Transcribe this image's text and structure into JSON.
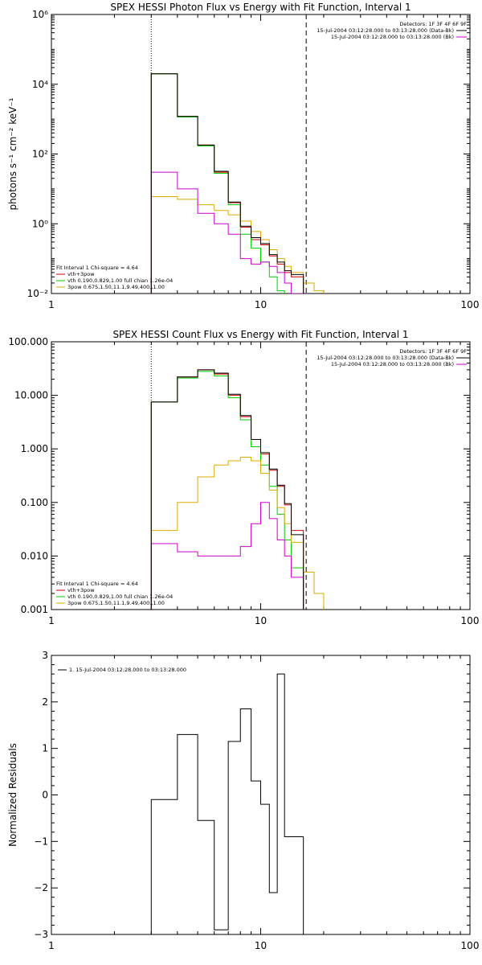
{
  "colors": {
    "background": "#ffffff",
    "axis": "#000000",
    "total_model": "#cc0000",
    "thermal": "#00cc00",
    "power_law": "#ddaa00",
    "background_spectrum": "#cc00cc",
    "data": "#000000"
  },
  "chart_data": [
    {
      "type": "line",
      "title": "SPEX HESSI Photon Flux vs Energy with Fit Function, Interval 1",
      "ylabel": "photons s⁻¹ cm⁻² keV⁻¹",
      "xlabel": "",
      "xscale": "log",
      "yscale": "log",
      "xlim": [
        1,
        100
      ],
      "ylim": [
        0.01,
        1000000
      ],
      "x_ticks": [
        1,
        10,
        100
      ],
      "x_tick_labels": [
        "1",
        "10",
        "100"
      ],
      "y_ticks": [
        0.01,
        1,
        100,
        10000,
        1000000
      ],
      "y_tick_labels": [
        "10⁻²",
        "10⁰",
        "10²",
        "10⁴",
        "10⁶"
      ],
      "vlines": [
        {
          "x": 3,
          "style": "dotted"
        },
        {
          "x": 16.5,
          "style": "dashed"
        }
      ],
      "legend_topright": {
        "header": "Detectors: 1F 3F 4F 6F 9F",
        "entries": [
          {
            "text": "15-Jul-2004 03:12:28.000 to 03:13:28.000 (Data-Bk)",
            "color": "#000000"
          },
          {
            "text": "15-Jul-2004 03:12:28.000 to 03:13:28.000 (Bk)",
            "color": "#cc00cc"
          }
        ]
      },
      "legend_bottomleft": {
        "header": "Fit Interval 1    Chi-square = 4.64",
        "entries": [
          {
            "text": "vth+3pow",
            "color": "#cc0000"
          },
          {
            "text": "vth 0.190,0.829,1.00  full chian 1.26e-04",
            "color": "#00cc00"
          },
          {
            "text": "3pow 0.675,1.50,11.1,9.49,400.,1.00",
            "color": "#ddaa00"
          }
        ]
      },
      "edges": [
        3,
        4,
        5,
        6,
        7,
        8,
        9,
        10,
        11,
        12,
        13,
        14,
        16,
        18,
        20,
        22
      ],
      "series": [
        {
          "name": "vth+3pow",
          "color": "#cc0000",
          "values": [
            20000,
            1200,
            180,
            30,
            4,
            0.8,
            0.35,
            0.25,
            0.12,
            0.07,
            0.04,
            0.03,
            null,
            null,
            null
          ]
        },
        {
          "name": "vth 0.190,0.829,1.00  full chian 1.26e-04",
          "color": "#00cc00",
          "values": [
            20000,
            1150,
            170,
            28,
            3.5,
            0.5,
            0.2,
            0.08,
            0.03,
            0.012,
            null,
            null,
            null,
            null,
            null
          ]
        },
        {
          "name": "3pow 0.675,1.50,11.1,9.49,400.,1.00",
          "color": "#ddaa00",
          "values": [
            6,
            5,
            3.5,
            2.4,
            1.8,
            1.2,
            0.6,
            0.35,
            0.18,
            0.1,
            0.06,
            0.04,
            0.02,
            0.012,
            null
          ]
        },
        {
          "name": "Bk",
          "color": "#cc00cc",
          "values": [
            30,
            10,
            2,
            1,
            0.5,
            0.1,
            0.07,
            0.08,
            0.06,
            0.04,
            0.02,
            0.01,
            null,
            null,
            null
          ]
        },
        {
          "name": "Data-Bk",
          "color": "#000000",
          "values": [
            20000,
            1200,
            180,
            32,
            4.2,
            0.85,
            0.4,
            0.27,
            0.13,
            0.08,
            0.045,
            0.035,
            null,
            null,
            null
          ]
        }
      ]
    },
    {
      "type": "line",
      "title": "SPEX HESSI Count Flux vs Energy with Fit Function, Interval 1",
      "ylabel": "",
      "xlabel": "",
      "xscale": "log",
      "yscale": "log",
      "xlim": [
        1,
        100
      ],
      "ylim": [
        0.001,
        100
      ],
      "x_ticks": [
        1,
        10,
        100
      ],
      "x_tick_labels": [
        "1",
        "10",
        "100"
      ],
      "y_ticks": [
        0.001,
        0.01,
        0.1,
        1,
        10,
        100
      ],
      "y_tick_labels": [
        "0.001",
        "0.010",
        "0.100",
        "1.000",
        "10.000",
        "100.000"
      ],
      "vlines": [
        {
          "x": 3,
          "style": "dotted"
        },
        {
          "x": 16.5,
          "style": "dashed"
        }
      ],
      "legend_topright": {
        "header": "Detectors: 1F 3F 4F 6F 9F",
        "entries": [
          {
            "text": "15-Jul-2004 03:12:28.000 to 03:13:28.000 (Data-Bk)",
            "color": "#000000"
          },
          {
            "text": "15-Jul-2004 03:12:28.000 to 03:13:28.000 (Bk)",
            "color": "#cc00cc"
          }
        ]
      },
      "legend_bottomleft": {
        "header": "Fit Interval 1    Chi-square = 4.64",
        "entries": [
          {
            "text": "vth+3pow",
            "color": "#cc0000"
          },
          {
            "text": "vth 0.190,0.829,1.00  full chian 1.26e-04",
            "color": "#00cc00"
          },
          {
            "text": "3pow 0.675,1.50,11.1,9.49,400.,1.00",
            "color": "#ddaa00"
          }
        ]
      },
      "edges": [
        3,
        4,
        5,
        6,
        7,
        8,
        9,
        10,
        11,
        12,
        13,
        14,
        16,
        18,
        20,
        22
      ],
      "series": [
        {
          "name": "vth+3pow",
          "color": "#cc0000",
          "values": [
            7.5,
            22,
            30,
            25,
            10,
            4,
            1.5,
            0.8,
            0.4,
            0.2,
            0.09,
            0.03,
            null,
            null,
            null
          ]
        },
        {
          "name": "vth 0.190,0.829,1.00  full chian 1.26e-04",
          "color": "#00cc00",
          "values": [
            7.5,
            21,
            28,
            23,
            9,
            3.5,
            1.1,
            0.5,
            0.2,
            0.06,
            0.02,
            0.006,
            null,
            null,
            null
          ]
        },
        {
          "name": "3pow 0.675,1.50,11.1,9.49,400.,1.00",
          "color": "#ddaa00",
          "values": [
            0.03,
            0.1,
            0.3,
            0.5,
            0.6,
            0.7,
            0.6,
            0.35,
            0.17,
            0.08,
            0.04,
            0.018,
            0.005,
            0.002,
            null
          ]
        },
        {
          "name": "Bk",
          "color": "#cc00cc",
          "values": [
            0.017,
            0.012,
            0.01,
            0.01,
            0.01,
            0.015,
            0.04,
            0.1,
            0.05,
            0.02,
            0.01,
            0.004,
            null,
            null,
            null
          ]
        },
        {
          "name": "Data-Bk",
          "color": "#000000",
          "values": [
            7.5,
            22,
            30,
            26,
            10.5,
            4.2,
            1.5,
            0.85,
            0.42,
            0.21,
            0.095,
            0.025,
            null,
            null,
            null
          ]
        }
      ]
    },
    {
      "type": "line",
      "title": "",
      "ylabel": "Normalized Residuals",
      "xlabel": "",
      "xscale": "log",
      "yscale": "linear",
      "xlim": [
        1,
        100
      ],
      "ylim": [
        -3,
        3
      ],
      "x_ticks": [
        1,
        10,
        100
      ],
      "x_tick_labels": [
        "1",
        "10",
        "100"
      ],
      "y_ticks": [
        -3,
        -2,
        -1,
        0,
        1,
        2,
        3
      ],
      "y_tick_labels": [
        "−3",
        "−2",
        "−1",
        "0",
        "1",
        "2",
        "3"
      ],
      "legend": {
        "entries": [
          {
            "text": "1. 15-Jul-2004 03:12:28.000 to 03:13:28.000",
            "color": "#000000"
          }
        ]
      },
      "edges": [
        3,
        4,
        5,
        6,
        7,
        8,
        9,
        10,
        11,
        12,
        13,
        14,
        16
      ],
      "series": [
        {
          "name": "1. 15-Jul-2004 03:12:28.000 to 03:13:28.000",
          "color": "#000000",
          "values": [
            -0.1,
            1.3,
            -0.55,
            -2.9,
            1.15,
            1.85,
            0.3,
            -0.2,
            -2.1,
            2.6,
            -0.9,
            -0.9
          ]
        }
      ]
    }
  ]
}
